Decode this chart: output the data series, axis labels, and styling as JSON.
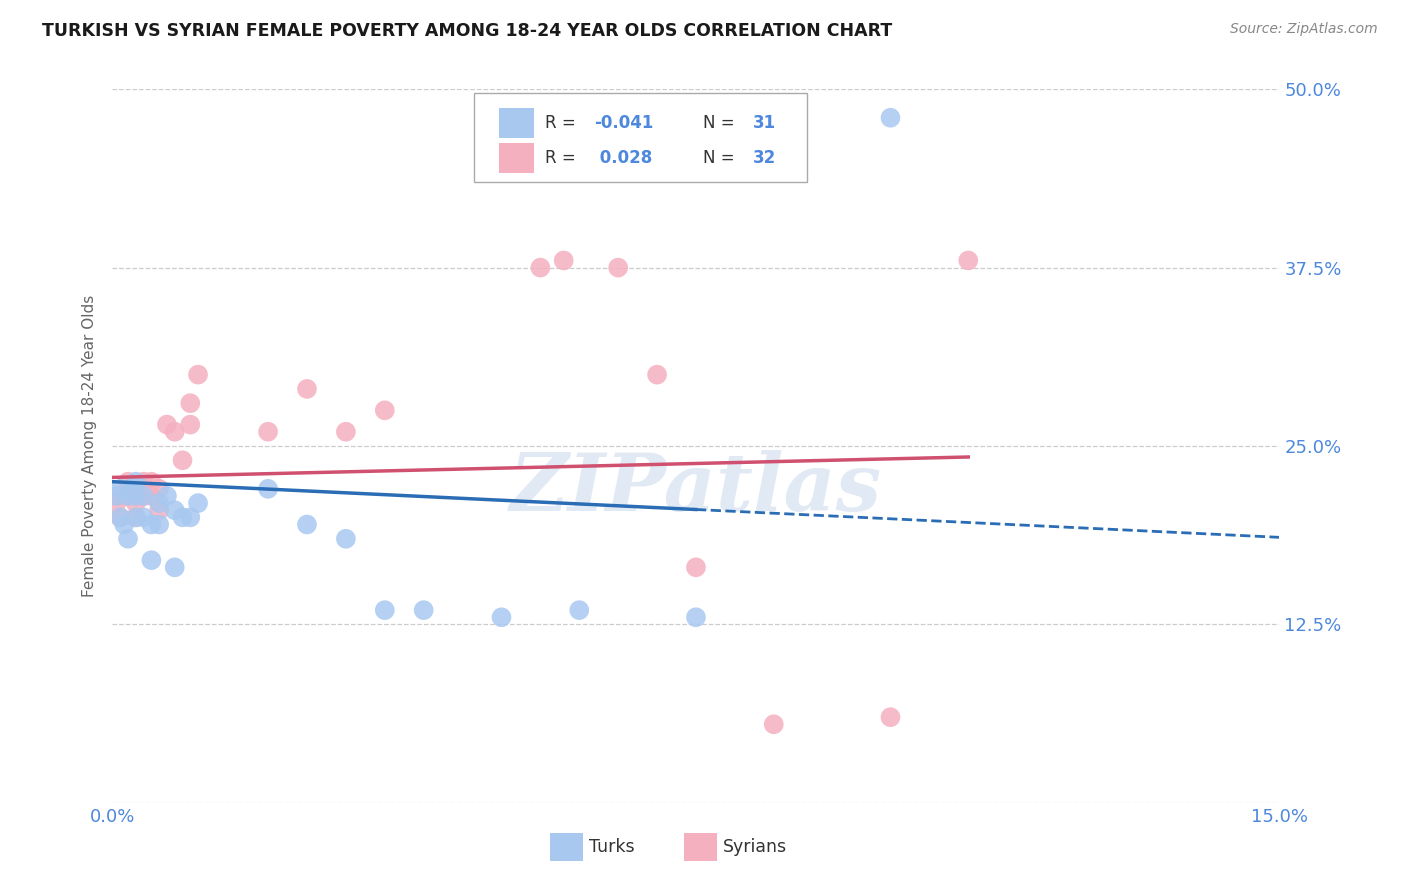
{
  "title": "TURKISH VS SYRIAN FEMALE POVERTY AMONG 18-24 YEAR OLDS CORRELATION CHART",
  "source": "Source: ZipAtlas.com",
  "ylabel": "Female Poverty Among 18-24 Year Olds",
  "xlim": [
    0.0,
    0.15
  ],
  "ylim": [
    0.0,
    0.5
  ],
  "turks_color": "#a8c8f0",
  "turks_line_color": "#2a6db5",
  "syrians_color": "#f5b0c0",
  "syrians_line_color": "#d05070",
  "turks_R": -0.041,
  "turks_N": 31,
  "syrians_R": 0.028,
  "syrians_N": 32,
  "turks_x": [
    0.0005,
    0.001,
    0.001,
    0.0015,
    0.002,
    0.002,
    0.0025,
    0.003,
    0.003,
    0.003,
    0.004,
    0.004,
    0.005,
    0.005,
    0.006,
    0.006,
    0.007,
    0.008,
    0.008,
    0.009,
    0.01,
    0.011,
    0.02,
    0.025,
    0.03,
    0.035,
    0.04,
    0.05,
    0.06,
    0.075,
    0.1
  ],
  "turks_y": [
    0.215,
    0.2,
    0.22,
    0.195,
    0.215,
    0.185,
    0.22,
    0.2,
    0.215,
    0.225,
    0.2,
    0.215,
    0.17,
    0.195,
    0.195,
    0.21,
    0.215,
    0.165,
    0.205,
    0.2,
    0.2,
    0.21,
    0.22,
    0.195,
    0.185,
    0.135,
    0.135,
    0.13,
    0.135,
    0.13,
    0.48
  ],
  "syrians_x": [
    0.0005,
    0.001,
    0.001,
    0.002,
    0.002,
    0.003,
    0.003,
    0.003,
    0.004,
    0.004,
    0.005,
    0.005,
    0.006,
    0.006,
    0.007,
    0.008,
    0.009,
    0.01,
    0.01,
    0.011,
    0.02,
    0.025,
    0.03,
    0.035,
    0.055,
    0.058,
    0.065,
    0.07,
    0.075,
    0.085,
    0.1,
    0.11
  ],
  "syrians_y": [
    0.21,
    0.2,
    0.215,
    0.215,
    0.225,
    0.2,
    0.21,
    0.215,
    0.215,
    0.225,
    0.215,
    0.225,
    0.205,
    0.22,
    0.265,
    0.26,
    0.24,
    0.265,
    0.28,
    0.3,
    0.26,
    0.29,
    0.26,
    0.275,
    0.375,
    0.38,
    0.375,
    0.3,
    0.165,
    0.055,
    0.06,
    0.38
  ],
  "background_color": "#ffffff",
  "grid_color": "#cccccc",
  "watermark": "ZIPatlas",
  "title_color": "#1a1a1a",
  "source_color": "#888888",
  "tick_color": "#4d88dd",
  "label_color": "#666666"
}
